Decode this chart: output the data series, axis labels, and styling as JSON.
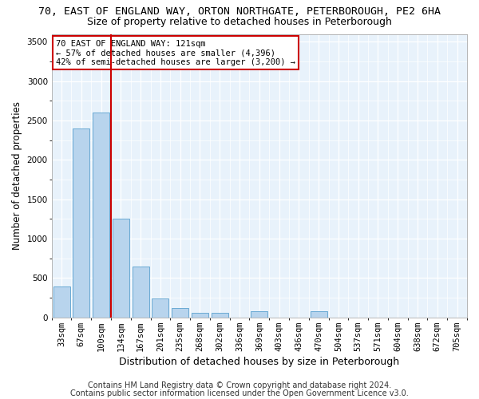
{
  "title1": "70, EAST OF ENGLAND WAY, ORTON NORTHGATE, PETERBOROUGH, PE2 6HA",
  "title2": "Size of property relative to detached houses in Peterborough",
  "xlabel": "Distribution of detached houses by size in Peterborough",
  "ylabel": "Number of detached properties",
  "categories": [
    "33sqm",
    "67sqm",
    "100sqm",
    "134sqm",
    "167sqm",
    "201sqm",
    "235sqm",
    "268sqm",
    "302sqm",
    "336sqm",
    "369sqm",
    "403sqm",
    "436sqm",
    "470sqm",
    "504sqm",
    "537sqm",
    "571sqm",
    "604sqm",
    "638sqm",
    "672sqm",
    "705sqm"
  ],
  "values": [
    390,
    2400,
    2600,
    1250,
    650,
    245,
    120,
    60,
    55,
    0,
    75,
    0,
    0,
    80,
    0,
    0,
    0,
    0,
    0,
    0,
    0
  ],
  "bar_color": "#b8d4ed",
  "bar_edge_color": "#6aaad4",
  "vline_color": "#cc0000",
  "annotation_text": "70 EAST OF ENGLAND WAY: 121sqm\n← 57% of detached houses are smaller (4,396)\n42% of semi-detached houses are larger (3,200) →",
  "annotation_box_color": "white",
  "annotation_box_edge": "#cc0000",
  "ylim": [
    0,
    3600
  ],
  "yticks": [
    0,
    500,
    1000,
    1500,
    2000,
    2500,
    3000,
    3500
  ],
  "footer1": "Contains HM Land Registry data © Crown copyright and database right 2024.",
  "footer2": "Contains public sector information licensed under the Open Government Licence v3.0.",
  "plot_bg_color": "#e8f2fb",
  "title1_fontsize": 9.5,
  "title2_fontsize": 9,
  "xlabel_fontsize": 9,
  "ylabel_fontsize": 8.5,
  "tick_fontsize": 7.5,
  "annotation_fontsize": 7.5,
  "footer_fontsize": 7
}
